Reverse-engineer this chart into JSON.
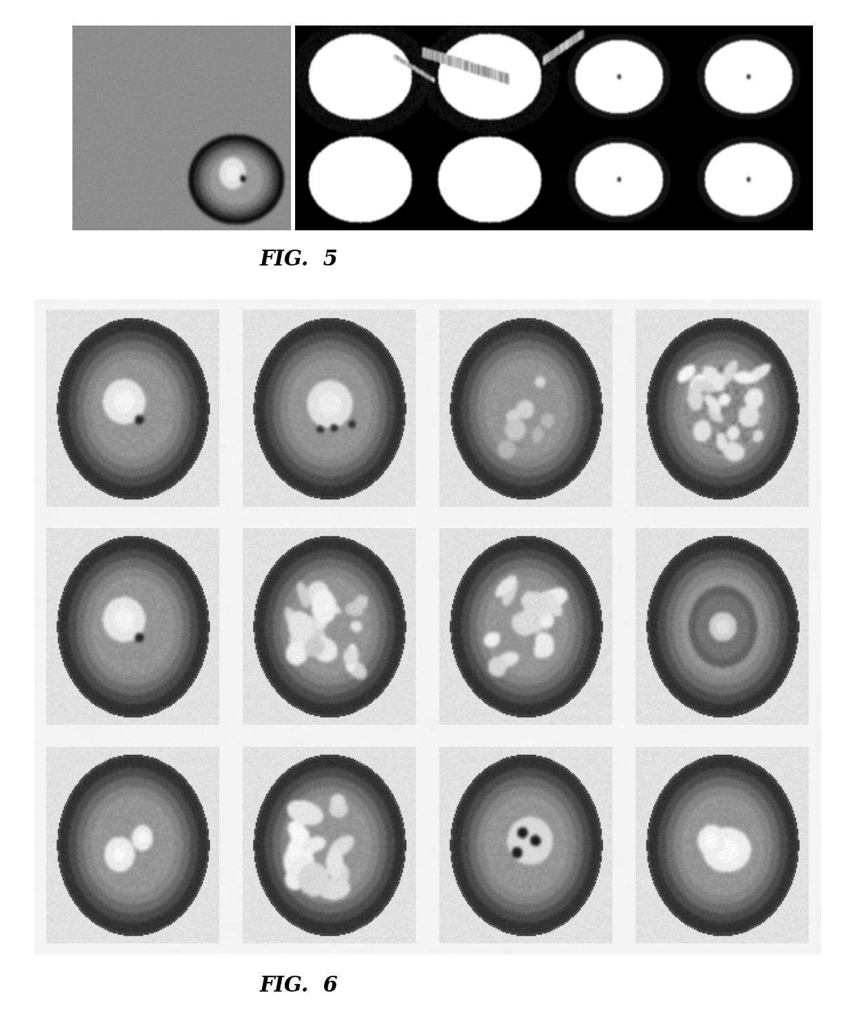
{
  "fig5_label": "FIG.  5",
  "fig6_label": "FIG.  6",
  "bg_color": "#ffffff",
  "label_fontsize": 22,
  "label_style": "italic",
  "label_weight": "bold",
  "page_width": 12.4,
  "page_height": 14.85
}
